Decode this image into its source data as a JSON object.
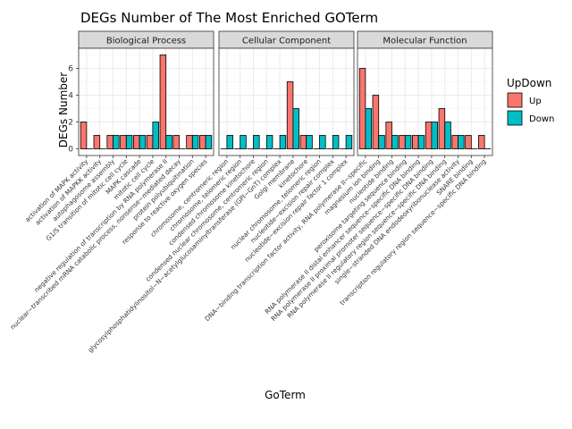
{
  "chart_data": {
    "type": "bar",
    "title": "DEGs Number of The Most Enriched GOTerm",
    "xlabel": "GoTerm",
    "ylabel": "DEGs Number",
    "ylim": [
      -0.5,
      7.5
    ],
    "yticks": [
      0,
      2,
      4,
      6
    ],
    "grid": true,
    "legend": {
      "title": "UpDown",
      "position": "right",
      "entries": [
        {
          "name": "Up",
          "color": "#F8766D"
        },
        {
          "name": "Down",
          "color": "#00BFC4"
        }
      ]
    },
    "facets": [
      {
        "name": "Biological Process",
        "categories": [
          "activation of MAPK activity",
          "activation of MAPKK activity",
          "autophagosome assembly",
          "G1/S transition of mitotic cell cycle",
          "MAPK cascade",
          "mitotic cell cycle",
          "negative regulation of transcription by RNA polymerase II",
          "nuclear−transcribed mRNA catabolic process, nonsense−mediated decay",
          "protein polyubiquitination",
          "response to reactive oxygen species"
        ],
        "series": [
          {
            "name": "Up",
            "values": [
              2,
              1,
              1,
              1,
              1,
              1,
              7,
              1,
              1,
              1
            ]
          },
          {
            "name": "Down",
            "values": [
              0,
              0,
              1,
              1,
              1,
              2,
              1,
              0,
              1,
              1
            ]
          }
        ]
      },
      {
        "name": "Cellular Component",
        "categories": [
          "chromosome, centromeric region",
          "chromosome, telomeric region",
          "condensed chromosome kinetochore",
          "condensed nuclear chromosome, centromeric region",
          "glycosylphosphatidylinositol−N−acetylglucosaminyltransferase (GPI−GnT) complex",
          "Golgi membrane",
          "kinetochore",
          "nuclear chromosome, telomeric region",
          "nucleotide−excision repair complex",
          "nucleotide−excision repair factor 1 complex"
        ],
        "series": [
          {
            "name": "Up",
            "values": [
              0,
              0,
              0,
              0,
              0,
              5,
              1,
              0,
              0,
              0
            ]
          },
          {
            "name": "Down",
            "values": [
              1,
              1,
              1,
              1,
              1,
              3,
              1,
              1,
              1,
              1
            ]
          }
        ]
      },
      {
        "name": "Molecular Function",
        "categories": [
          "DNA−binding transcription factor activity, RNA polymerase II−specific",
          "magnesium ion binding",
          "nucleotide binding",
          "peroxisome targeting sequence binding",
          "RNA polymerase II distal enhancer sequence−specific DNA binding",
          "RNA polymerase II proximal promoter sequence−specific DNA binding",
          "RNA polymerase II regulatory region sequence−specific DNA binding",
          "single−stranded DNA endodeoxyribonuclease activity",
          "SNARE binding",
          "transcription regulatory region sequence−specific DNA binding"
        ],
        "series": [
          {
            "name": "Up",
            "values": [
              6,
              4,
              2,
              1,
              1,
              2,
              3,
              1,
              1,
              1
            ]
          },
          {
            "name": "Down",
            "values": [
              3,
              1,
              1,
              1,
              1,
              2,
              2,
              1,
              0,
              0
            ]
          }
        ]
      }
    ]
  }
}
